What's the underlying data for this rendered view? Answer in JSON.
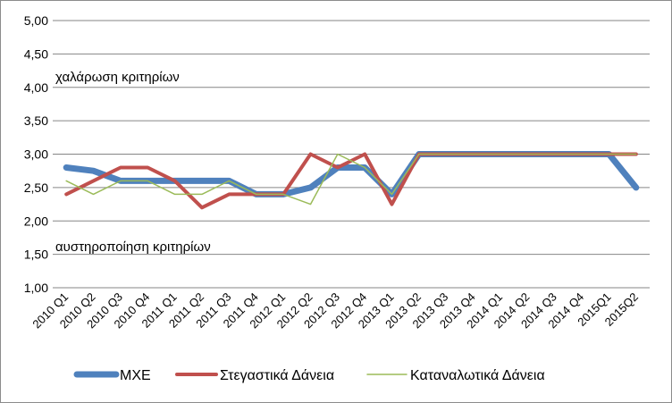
{
  "chart_data": {
    "type": "line",
    "categories": [
      "2010 Q1",
      "2010 Q2",
      "2010 Q3",
      "2010 Q4",
      "2011 Q1",
      "2011 Q2",
      "2011 Q3",
      "2011 Q4",
      "2012 Q1",
      "2012 Q2",
      "2012 Q3",
      "2012 Q4",
      "2013 Q1",
      "2013 Q2",
      "2013 Q3",
      "2013 Q4",
      "2014 Q1",
      "2014 Q2",
      "2014 Q3",
      "2014 Q4",
      "2015Q1",
      "2015Q2"
    ],
    "ylim": [
      1.0,
      5.0
    ],
    "yticks": [
      "1,00",
      "1,50",
      "2,00",
      "2,50",
      "3,00",
      "3,50",
      "4,00",
      "4,50",
      "5,00"
    ],
    "grid": true,
    "legend_position": "bottom",
    "series": [
      {
        "name": "ΜΧΕ",
        "color": "#4f81bd",
        "values": [
          2.8,
          2.75,
          2.6,
          2.6,
          2.6,
          2.6,
          2.6,
          2.4,
          2.4,
          2.5,
          2.8,
          2.8,
          2.4,
          3.0,
          3.0,
          3.0,
          3.0,
          3.0,
          3.0,
          3.0,
          3.0,
          2.5
        ]
      },
      {
        "name": "Στεγαστικά Δάνεια",
        "color": "#c0504d",
        "values": [
          2.4,
          2.6,
          2.8,
          2.8,
          2.6,
          2.2,
          2.4,
          2.4,
          2.4,
          3.0,
          2.8,
          3.0,
          2.25,
          3.0,
          3.0,
          3.0,
          3.0,
          3.0,
          3.0,
          3.0,
          3.0,
          3.0
        ]
      },
      {
        "name": "Καταναλωτικά Δάνεια",
        "color": "#9bbb59",
        "values": [
          2.6,
          2.4,
          2.6,
          2.6,
          2.4,
          2.4,
          2.6,
          2.4,
          2.4,
          2.25,
          3.0,
          2.8,
          2.4,
          3.0,
          3.0,
          3.0,
          3.0,
          3.0,
          3.0,
          3.0,
          3.0,
          3.0
        ]
      }
    ],
    "annotations": [
      "χαλάρωση κριτηρίων",
      "αυστηροποίηση κριτηρίων"
    ]
  }
}
